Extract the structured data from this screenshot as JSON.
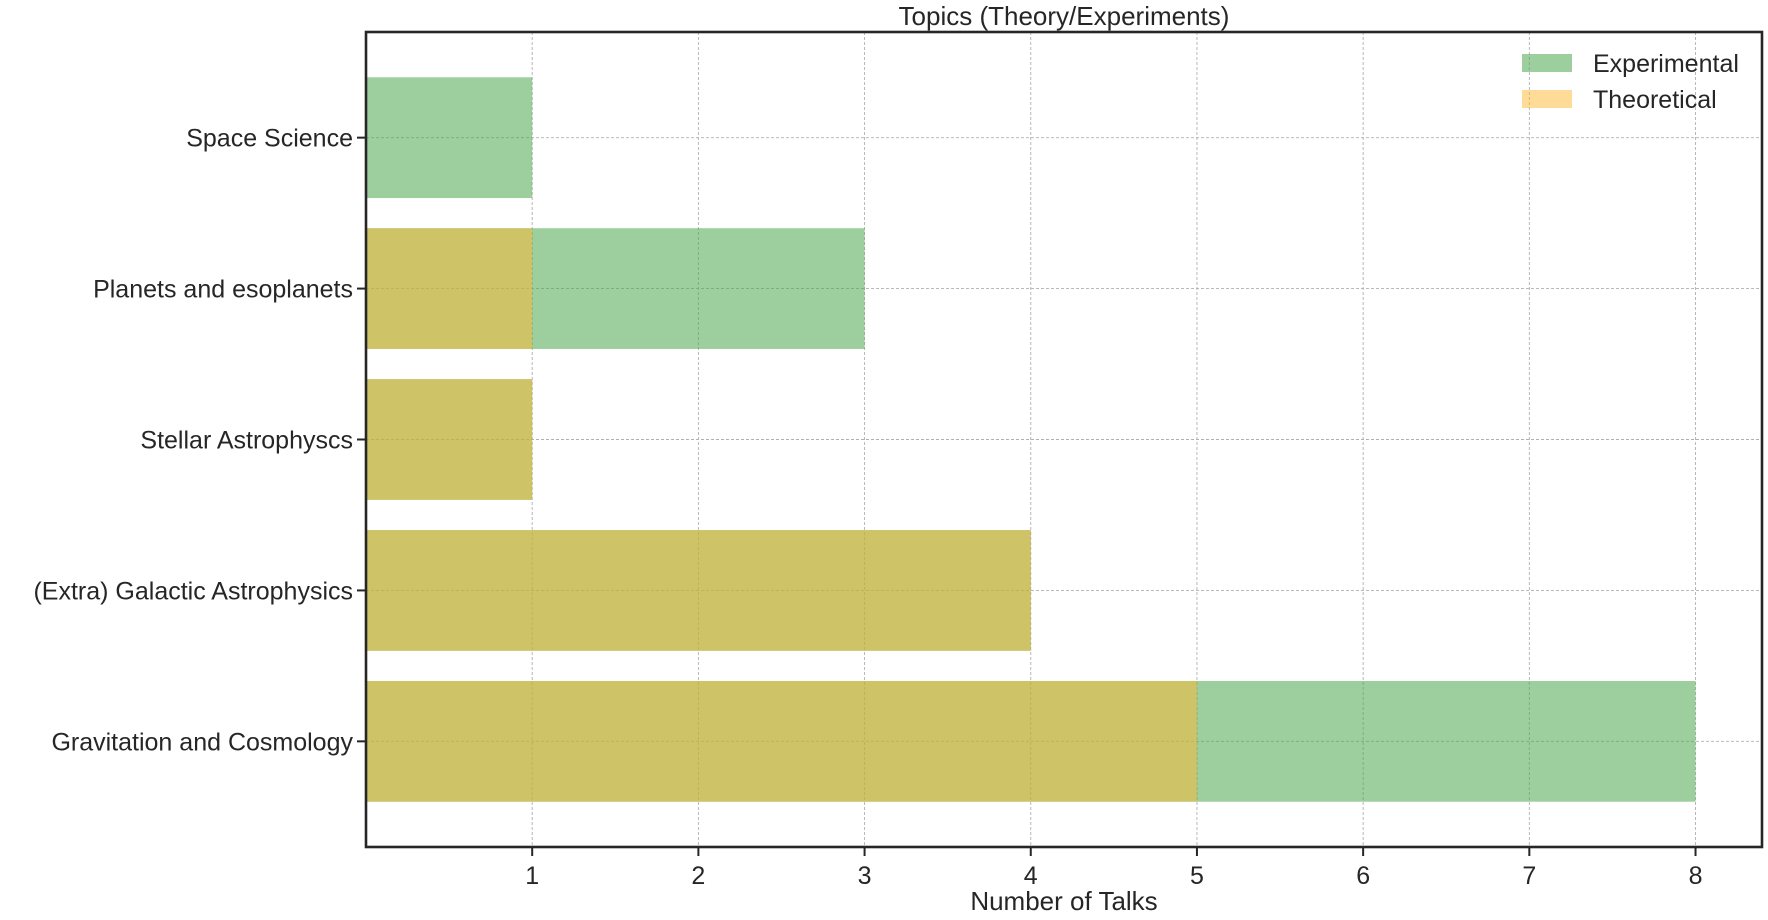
{
  "chart_data": {
    "type": "bar",
    "orientation": "horizontal",
    "title": "Topics (Theory/Experiments)",
    "xlabel": "Number of Talks",
    "ylabel": "",
    "categories": [
      "Gravitation and Cosmology",
      "(Extra) Galactic Astrophysics",
      "Stellar Astrophyscs",
      "Planets and esoplanets",
      "Space Science"
    ],
    "series": [
      {
        "name": "Experimental",
        "values": [
          8,
          4,
          1,
          3,
          1
        ],
        "color": "#4ca64c",
        "opacity": 0.55
      },
      {
        "name": "Theoretical",
        "values": [
          5,
          4,
          1,
          1,
          0
        ],
        "color": "#ffb732",
        "opacity": 0.5
      }
    ],
    "xlim": [
      0,
      8.4
    ],
    "xticks": [
      1,
      2,
      3,
      4,
      5,
      6,
      7,
      8
    ],
    "grid": true,
    "legend_position": "top-right"
  }
}
